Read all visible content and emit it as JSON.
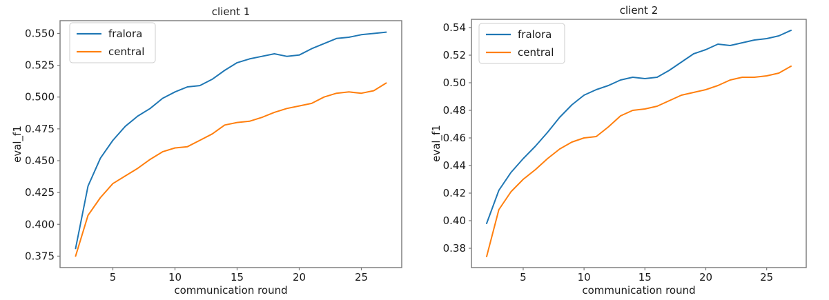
{
  "figure": {
    "background": "#ffffff",
    "text_color": "#1a1a1a",
    "spine_color": "#777777"
  },
  "chart_data": [
    {
      "type": "line",
      "title": "client 1",
      "xlabel": "communication round",
      "ylabel": "eval_f1",
      "grid": false,
      "legend": {
        "position": "upper left",
        "entries": [
          "fralora",
          "central"
        ]
      },
      "xlim": [
        0.75,
        28.25
      ],
      "ylim": [
        0.366,
        0.56
      ],
      "x_ticks": [
        5,
        10,
        15,
        20,
        25
      ],
      "x_tick_labels": [
        "5",
        "10",
        "15",
        "20",
        "25"
      ],
      "y_ticks": [
        0.375,
        0.4,
        0.425,
        0.45,
        0.475,
        0.5,
        0.525,
        0.55
      ],
      "y_tick_labels": [
        "0.375",
        "0.400",
        "0.425",
        "0.450",
        "0.475",
        "0.500",
        "0.525",
        "0.550"
      ],
      "x": [
        2,
        3,
        4,
        5,
        6,
        7,
        8,
        9,
        10,
        11,
        12,
        13,
        14,
        15,
        16,
        17,
        18,
        19,
        20,
        21,
        22,
        23,
        24,
        25,
        26,
        27
      ],
      "series": [
        {
          "name": "fralora",
          "color": "#1f77b4",
          "values": [
            0.381,
            0.43,
            0.452,
            0.466,
            0.477,
            0.485,
            0.491,
            0.499,
            0.504,
            0.508,
            0.509,
            0.514,
            0.521,
            0.527,
            0.53,
            0.532,
            0.534,
            0.532,
            0.533,
            0.538,
            0.542,
            0.546,
            0.547,
            0.549,
            0.55,
            0.551
          ]
        },
        {
          "name": "central",
          "color": "#ff7f0e",
          "values": [
            0.375,
            0.407,
            0.421,
            0.432,
            0.438,
            0.444,
            0.451,
            0.457,
            0.46,
            0.461,
            0.466,
            0.471,
            0.478,
            0.48,
            0.481,
            0.484,
            0.488,
            0.491,
            0.493,
            0.495,
            0.5,
            0.503,
            0.504,
            0.503,
            0.505,
            0.511
          ]
        }
      ]
    },
    {
      "type": "line",
      "title": "client 2",
      "xlabel": "communication round",
      "ylabel": "eval_f1",
      "grid": false,
      "legend": {
        "position": "upper left",
        "entries": [
          "fralora",
          "central"
        ]
      },
      "xlim": [
        0.75,
        28.25
      ],
      "ylim": [
        0.366,
        0.546
      ],
      "x_ticks": [
        5,
        10,
        15,
        20,
        25
      ],
      "x_tick_labels": [
        "5",
        "10",
        "15",
        "20",
        "25"
      ],
      "y_ticks": [
        0.38,
        0.4,
        0.42,
        0.44,
        0.46,
        0.48,
        0.5,
        0.52,
        0.54
      ],
      "y_tick_labels": [
        "0.38",
        "0.40",
        "0.42",
        "0.44",
        "0.46",
        "0.48",
        "0.50",
        "0.52",
        "0.54"
      ],
      "x": [
        2,
        3,
        4,
        5,
        6,
        7,
        8,
        9,
        10,
        11,
        12,
        13,
        14,
        15,
        16,
        17,
        18,
        19,
        20,
        21,
        22,
        23,
        24,
        25,
        26,
        27
      ],
      "series": [
        {
          "name": "fralora",
          "color": "#1f77b4",
          "values": [
            0.398,
            0.422,
            0.435,
            0.445,
            0.454,
            0.464,
            0.475,
            0.484,
            0.491,
            0.495,
            0.498,
            0.502,
            0.504,
            0.503,
            0.504,
            0.509,
            0.515,
            0.521,
            0.524,
            0.528,
            0.527,
            0.529,
            0.531,
            0.532,
            0.534,
            0.538
          ]
        },
        {
          "name": "central",
          "color": "#ff7f0e",
          "values": [
            0.374,
            0.408,
            0.421,
            0.43,
            0.437,
            0.445,
            0.452,
            0.457,
            0.46,
            0.461,
            0.468,
            0.476,
            0.48,
            0.481,
            0.483,
            0.487,
            0.491,
            0.493,
            0.495,
            0.498,
            0.502,
            0.504,
            0.504,
            0.505,
            0.507,
            0.512
          ]
        }
      ]
    }
  ]
}
